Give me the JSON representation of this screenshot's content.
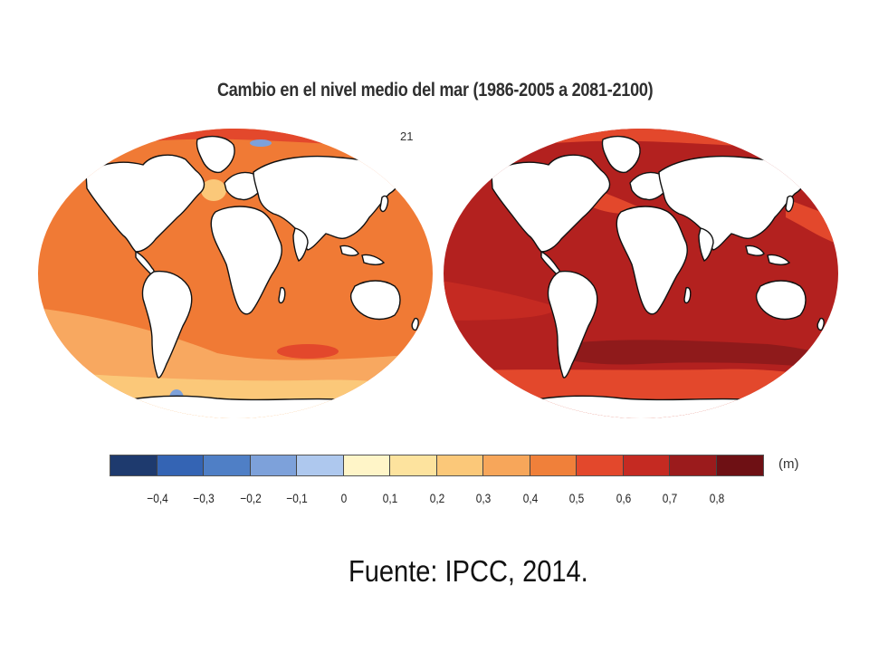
{
  "title": "Cambio en el nivel medio del mar (1986-2005 a 2081-2100)",
  "panel_label": "21",
  "colorbar": {
    "unit": "(m)",
    "bins": [
      {
        "from": -0.5,
        "to": -0.4,
        "color": "#1e3a6e"
      },
      {
        "from": -0.4,
        "to": -0.3,
        "color": "#3464b4"
      },
      {
        "from": -0.3,
        "to": -0.2,
        "color": "#4f7fc6"
      },
      {
        "from": -0.2,
        "to": -0.1,
        "color": "#7da1da"
      },
      {
        "from": -0.1,
        "to": 0.0,
        "color": "#aec8ee"
      },
      {
        "from": 0.0,
        "to": 0.1,
        "color": "#fff5c8"
      },
      {
        "from": 0.1,
        "to": 0.2,
        "color": "#fde39e"
      },
      {
        "from": 0.2,
        "to": 0.3,
        "color": "#fbc879"
      },
      {
        "from": 0.3,
        "to": 0.4,
        "color": "#f7a65a"
      },
      {
        "from": 0.4,
        "to": 0.5,
        "color": "#f0803a"
      },
      {
        "from": 0.5,
        "to": 0.6,
        "color": "#e3482c"
      },
      {
        "from": 0.6,
        "to": 0.7,
        "color": "#c52a22"
      },
      {
        "from": 0.7,
        "to": 0.8,
        "color": "#9b1b1c"
      },
      {
        "from": 0.8,
        "to": 0.9,
        "color": "#6e1014"
      }
    ],
    "tick_labels": [
      "−0,4",
      "−0,3",
      "−0,2",
      "−0,1",
      "0",
      "0,1",
      "0,2",
      "0,3",
      "0,4",
      "0,5",
      "0,6",
      "0,7",
      "0,8"
    ]
  },
  "maps": [
    {
      "name": "left",
      "base_color": "#f07a35",
      "light_color": "#f8a860",
      "dark_color": "#e3482c"
    },
    {
      "name": "right",
      "base_color": "#b3211f",
      "light_color": "#e3482c",
      "dark_color": "#8f1a1b"
    }
  ],
  "source": "Fuente: IPCC, 2014."
}
